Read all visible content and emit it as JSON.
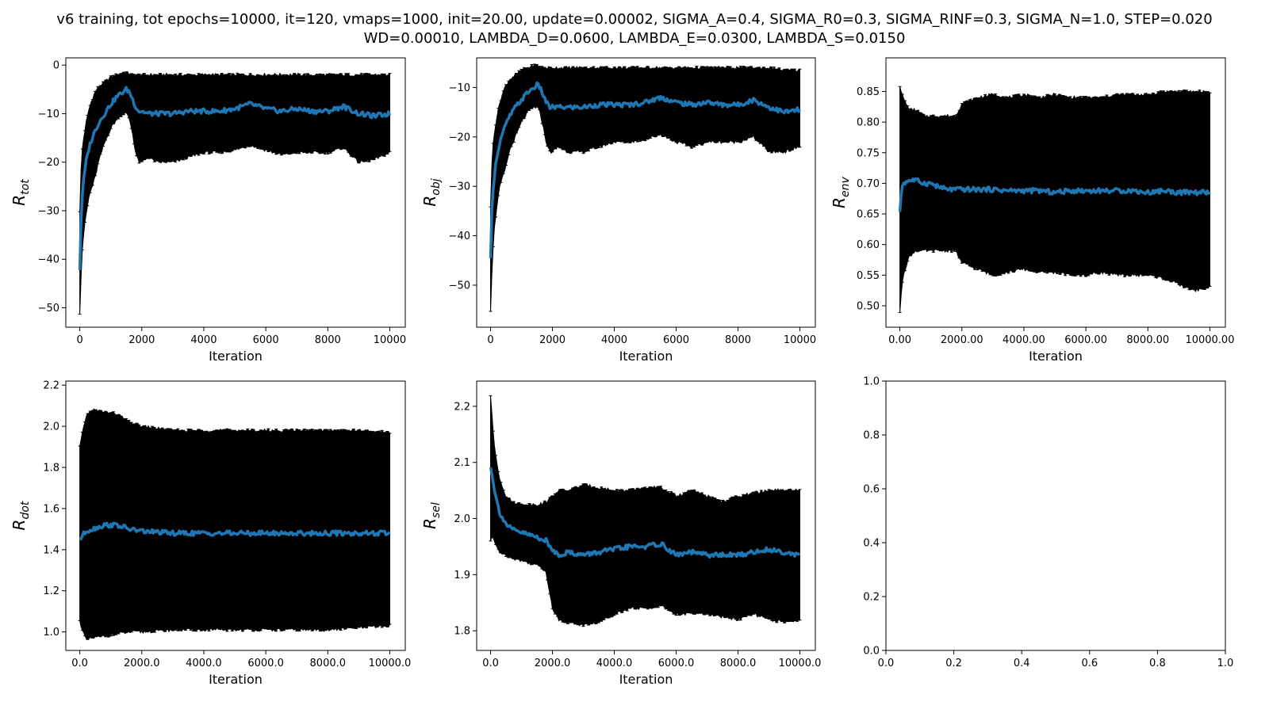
{
  "figure": {
    "title_line1": "v6 training, tot epochs=10000, it=120, vmaps=1000, init=20.00, update=0.00002, SIGMA_A=0.4, SIGMA_R0=0.3, SIGMA_RINF=0.3, SIGMA_N=1.0, STEP=0.020",
    "title_line2": "WD=0.00010, LAMBDA_D=0.0600, LAMBDA_E=0.0300, LAMBDA_S=0.0150"
  },
  "colors": {
    "mean_line": "#1f77b4",
    "error_band": "#000000",
    "axes": "#000000",
    "background": "#ffffff"
  },
  "chart_data": [
    {
      "type": "line",
      "ylabel_base": "R",
      "ylabel_sub": "tot",
      "xlabel": "Iteration",
      "xlim": [
        -450,
        10500
      ],
      "ylim": [
        -54,
        1.5
      ],
      "xticks": [
        0,
        2000,
        4000,
        6000,
        8000,
        10000
      ],
      "yticks": [
        -50,
        -40,
        -30,
        -20,
        -10,
        0
      ],
      "tick_decimals": 0,
      "series": [
        {
          "x": [
            0,
            50,
            100,
            200,
            300,
            400,
            500,
            600,
            800,
            1000,
            1200,
            1400,
            1500,
            1600,
            1700,
            1800,
            1900,
            2000,
            2200,
            2500,
            3000,
            3500,
            4000,
            4500,
            5000,
            5500,
            6000,
            6500,
            7000,
            7500,
            8000,
            8500,
            9000,
            9500,
            10000
          ],
          "mean": [
            -42,
            -30,
            -25,
            -20,
            -17,
            -15,
            -13.5,
            -12,
            -10,
            -8,
            -6.5,
            -5.5,
            -5,
            -5.5,
            -7,
            -8.5,
            -9.5,
            -9.5,
            -10,
            -10,
            -10,
            -9.5,
            -9.5,
            -9.5,
            -9,
            -8,
            -9,
            -9.5,
            -9,
            -9.5,
            -9.5,
            -8.5,
            -10,
            -10.5,
            -10
          ],
          "upper": [
            -30,
            -20,
            -16,
            -12,
            -9,
            -7,
            -5.5,
            -4.5,
            -3.5,
            -2.5,
            -2,
            -1.5,
            -1.5,
            -1.8,
            -2,
            -2,
            -2,
            -2,
            -2,
            -2,
            -2,
            -2,
            -2,
            -2,
            -2,
            -2,
            -2,
            -2,
            -2,
            -2,
            -2,
            -2,
            -2,
            -2,
            -2
          ],
          "lower": [
            -51,
            -42,
            -36,
            -31,
            -27,
            -25,
            -23,
            -20,
            -16,
            -13,
            -11,
            -10,
            -10,
            -11,
            -14,
            -18,
            -20,
            -20,
            -19,
            -20,
            -20,
            -19,
            -18,
            -18,
            -17.5,
            -16.5,
            -17.5,
            -18.5,
            -18,
            -18,
            -18,
            -17,
            -20,
            -19.5,
            -18
          ]
        }
      ]
    },
    {
      "type": "line",
      "ylabel_base": "R",
      "ylabel_sub": "obj",
      "xlabel": "Iteration",
      "xlim": [
        -450,
        10500
      ],
      "ylim": [
        -58.5,
        -4
      ],
      "xticks": [
        0,
        2000,
        4000,
        6000,
        8000,
        10000
      ],
      "yticks": [
        -50,
        -40,
        -30,
        -20,
        -10
      ],
      "tick_decimals": 0,
      "series": [
        {
          "x": [
            0,
            50,
            100,
            200,
            300,
            400,
            500,
            600,
            800,
            1000,
            1200,
            1400,
            1500,
            1600,
            1700,
            1800,
            1900,
            2000,
            2200,
            2500,
            3000,
            3500,
            4000,
            4500,
            5000,
            5500,
            6000,
            6500,
            7000,
            7500,
            8000,
            8500,
            9000,
            9500,
            10000
          ],
          "mean": [
            -45,
            -33,
            -29,
            -24,
            -21,
            -19,
            -17.5,
            -16,
            -14,
            -12.5,
            -11,
            -10,
            -9.5,
            -10,
            -11.5,
            -13,
            -14,
            -14,
            -14,
            -14,
            -14,
            -13.5,
            -13.5,
            -13.5,
            -13,
            -12,
            -13,
            -13.5,
            -13,
            -13.5,
            -13.5,
            -12.5,
            -14,
            -15,
            -14.5
          ],
          "upper": [
            -34,
            -24,
            -20,
            -16,
            -13,
            -11,
            -9.5,
            -8.5,
            -7.5,
            -6.5,
            -6,
            -5.5,
            -5.5,
            -5.8,
            -6,
            -6,
            -6,
            -6,
            -6,
            -6,
            -6,
            -6,
            -6,
            -6,
            -6,
            -6,
            -6,
            -6,
            -6,
            -6,
            -6,
            -6,
            -6,
            -6.5,
            -6.5
          ],
          "lower": [
            -55,
            -46,
            -40,
            -34,
            -30,
            -28,
            -26,
            -23,
            -20,
            -17,
            -15,
            -14,
            -14,
            -15,
            -18,
            -21,
            -23,
            -23,
            -22,
            -23,
            -23,
            -22,
            -21,
            -21,
            -20.5,
            -19.5,
            -21,
            -22,
            -21,
            -21,
            -21,
            -20,
            -23,
            -23,
            -22
          ]
        }
      ]
    },
    {
      "type": "line",
      "ylabel_base": "R",
      "ylabel_sub": "env",
      "xlabel": "Iteration",
      "xlim": [
        -450,
        10500
      ],
      "ylim": [
        0.465,
        0.905
      ],
      "xticks": [
        0,
        2000,
        4000,
        6000,
        8000,
        10000
      ],
      "yticks": [
        0.5,
        0.55,
        0.6,
        0.65,
        0.7,
        0.75,
        0.8,
        0.85
      ],
      "tick_decimals": 2,
      "series": [
        {
          "x": [
            0,
            50,
            100,
            300,
            500,
            800,
            1000,
            1200,
            1500,
            1800,
            2000,
            2500,
            3000,
            3500,
            4000,
            4500,
            5000,
            5500,
            6000,
            6500,
            7000,
            7500,
            8000,
            8500,
            9000,
            9500,
            10000
          ],
          "mean": [
            0.65,
            0.69,
            0.7,
            0.705,
            0.705,
            0.7,
            0.7,
            0.695,
            0.69,
            0.69,
            0.69,
            0.69,
            0.69,
            0.688,
            0.688,
            0.688,
            0.685,
            0.688,
            0.688,
            0.688,
            0.688,
            0.688,
            0.685,
            0.688,
            0.685,
            0.685,
            0.685
          ],
          "upper": [
            0.86,
            0.85,
            0.84,
            0.82,
            0.82,
            0.81,
            0.81,
            0.81,
            0.81,
            0.81,
            0.83,
            0.84,
            0.845,
            0.84,
            0.845,
            0.84,
            0.845,
            0.84,
            0.84,
            0.84,
            0.845,
            0.845,
            0.845,
            0.85,
            0.85,
            0.85,
            0.85
          ],
          "lower": [
            0.49,
            0.52,
            0.55,
            0.58,
            0.59,
            0.59,
            0.59,
            0.59,
            0.59,
            0.59,
            0.57,
            0.56,
            0.55,
            0.555,
            0.56,
            0.555,
            0.555,
            0.55,
            0.55,
            0.555,
            0.55,
            0.55,
            0.55,
            0.545,
            0.535,
            0.525,
            0.53
          ]
        }
      ]
    },
    {
      "type": "line",
      "ylabel_base": "R",
      "ylabel_sub": "dot",
      "xlabel": "Iteration",
      "xlim": [
        -450,
        10500
      ],
      "ylim": [
        0.91,
        2.22
      ],
      "xticks": [
        0,
        2000,
        4000,
        6000,
        8000,
        10000
      ],
      "yticks": [
        1.0,
        1.2,
        1.4,
        1.6,
        1.8,
        2.0,
        2.2
      ],
      "tick_decimals": 1,
      "series": [
        {
          "x": [
            0,
            200,
            400,
            800,
            1200,
            1600,
            2000,
            3000,
            4000,
            5000,
            6000,
            7000,
            8000,
            9000,
            10000
          ],
          "mean": [
            1.45,
            1.49,
            1.5,
            1.52,
            1.52,
            1.5,
            1.49,
            1.48,
            1.48,
            1.48,
            1.48,
            1.48,
            1.48,
            1.48,
            1.48
          ],
          "upper": [
            1.9,
            2.05,
            2.08,
            2.07,
            2.06,
            2.02,
            2.0,
            1.98,
            1.98,
            1.98,
            1.98,
            1.98,
            1.98,
            1.98,
            1.97
          ],
          "lower": [
            1.05,
            0.96,
            0.97,
            0.98,
            0.99,
            1.0,
            1.0,
            1.01,
            1.01,
            1.01,
            1.01,
            1.01,
            1.01,
            1.02,
            1.03
          ]
        }
      ]
    },
    {
      "type": "line",
      "ylabel_base": "R",
      "ylabel_sub": "sel",
      "xlabel": "Iteration",
      "xlim": [
        -450,
        10500
      ],
      "ylim": [
        1.765,
        2.245
      ],
      "xticks": [
        0,
        2000,
        4000,
        6000,
        8000,
        10000
      ],
      "yticks": [
        1.8,
        1.9,
        2.0,
        2.1,
        2.2
      ],
      "tick_decimals": 1,
      "series": [
        {
          "x": [
            0,
            50,
            100,
            200,
            300,
            500,
            700,
            1000,
            1300,
            1600,
            1800,
            1900,
            2000,
            2200,
            2500,
            3000,
            3500,
            4000,
            4500,
            5000,
            5500,
            6000,
            6500,
            7000,
            7500,
            8000,
            8500,
            9000,
            9500,
            10000
          ],
          "mean": [
            2.09,
            2.08,
            2.06,
            2.03,
            2.01,
            1.99,
            1.98,
            1.975,
            1.97,
            1.965,
            1.96,
            1.95,
            1.945,
            1.935,
            1.94,
            1.935,
            1.94,
            1.945,
            1.95,
            1.95,
            1.955,
            1.935,
            1.94,
            1.935,
            1.935,
            1.935,
            1.94,
            1.945,
            1.94,
            1.935
          ],
          "upper": [
            2.22,
            2.18,
            2.14,
            2.1,
            2.07,
            2.04,
            2.03,
            2.025,
            2.025,
            2.025,
            2.03,
            2.035,
            2.04,
            2.05,
            2.05,
            2.06,
            2.055,
            2.05,
            2.05,
            2.055,
            2.055,
            2.04,
            2.05,
            2.04,
            2.03,
            2.04,
            2.045,
            2.05,
            2.05,
            2.05
          ],
          "lower": [
            1.96,
            1.97,
            1.96,
            1.95,
            1.94,
            1.935,
            1.93,
            1.925,
            1.92,
            1.915,
            1.905,
            1.87,
            1.84,
            1.82,
            1.815,
            1.81,
            1.815,
            1.83,
            1.84,
            1.84,
            1.845,
            1.83,
            1.83,
            1.83,
            1.825,
            1.82,
            1.83,
            1.82,
            1.815,
            1.82
          ]
        }
      ]
    },
    {
      "type": "line",
      "xlim": [
        0,
        1
      ],
      "ylim": [
        0,
        1
      ],
      "xticks": [
        0.0,
        0.2,
        0.4,
        0.6,
        0.8,
        1.0
      ],
      "yticks": [
        0.0,
        0.2,
        0.4,
        0.6,
        0.8,
        1.0
      ],
      "tick_decimals": 1,
      "series": []
    }
  ]
}
